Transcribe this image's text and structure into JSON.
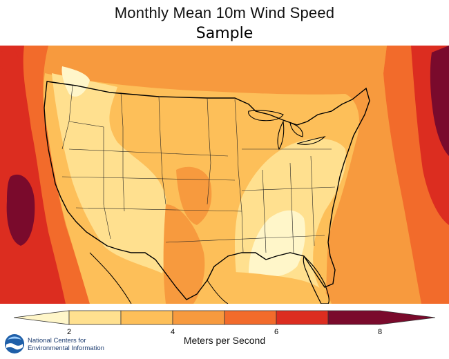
{
  "title": "Monthly Mean 10m Wind Speed",
  "subtitle": "Sample",
  "legend": {
    "label": "Meters per Second",
    "ticks": [
      "2",
      "4",
      "6",
      "8"
    ],
    "colors": [
      "#fff6c9",
      "#ffe08f",
      "#fdbf59",
      "#f79a3e",
      "#f26b2b",
      "#dc2d20",
      "#7a0a2c"
    ]
  },
  "logo": {
    "badge": "noaa",
    "text_line1": "National Centers for",
    "text_line2": "Environmental Information"
  },
  "chart_data": {
    "type": "heatmap",
    "title": "Monthly Mean 10m Wind Speed",
    "subtitle": "Sample",
    "colorbar_label": "Meters per Second",
    "colorbar_ticks": [
      2,
      4,
      6,
      8
    ],
    "bins": [
      {
        "range": [
          0,
          2
        ],
        "color": "#fff6c9"
      },
      {
        "range": [
          2,
          3
        ],
        "color": "#ffe08f"
      },
      {
        "range": [
          3,
          4
        ],
        "color": "#fdbf59"
      },
      {
        "range": [
          4,
          5
        ],
        "color": "#f79a3e"
      },
      {
        "range": [
          5,
          6
        ],
        "color": "#f26b2b"
      },
      {
        "range": [
          6,
          7
        ],
        "color": "#dc2d20"
      },
      {
        "range": [
          7,
          8
        ],
        "color": "#7a0a2c"
      }
    ]
  }
}
